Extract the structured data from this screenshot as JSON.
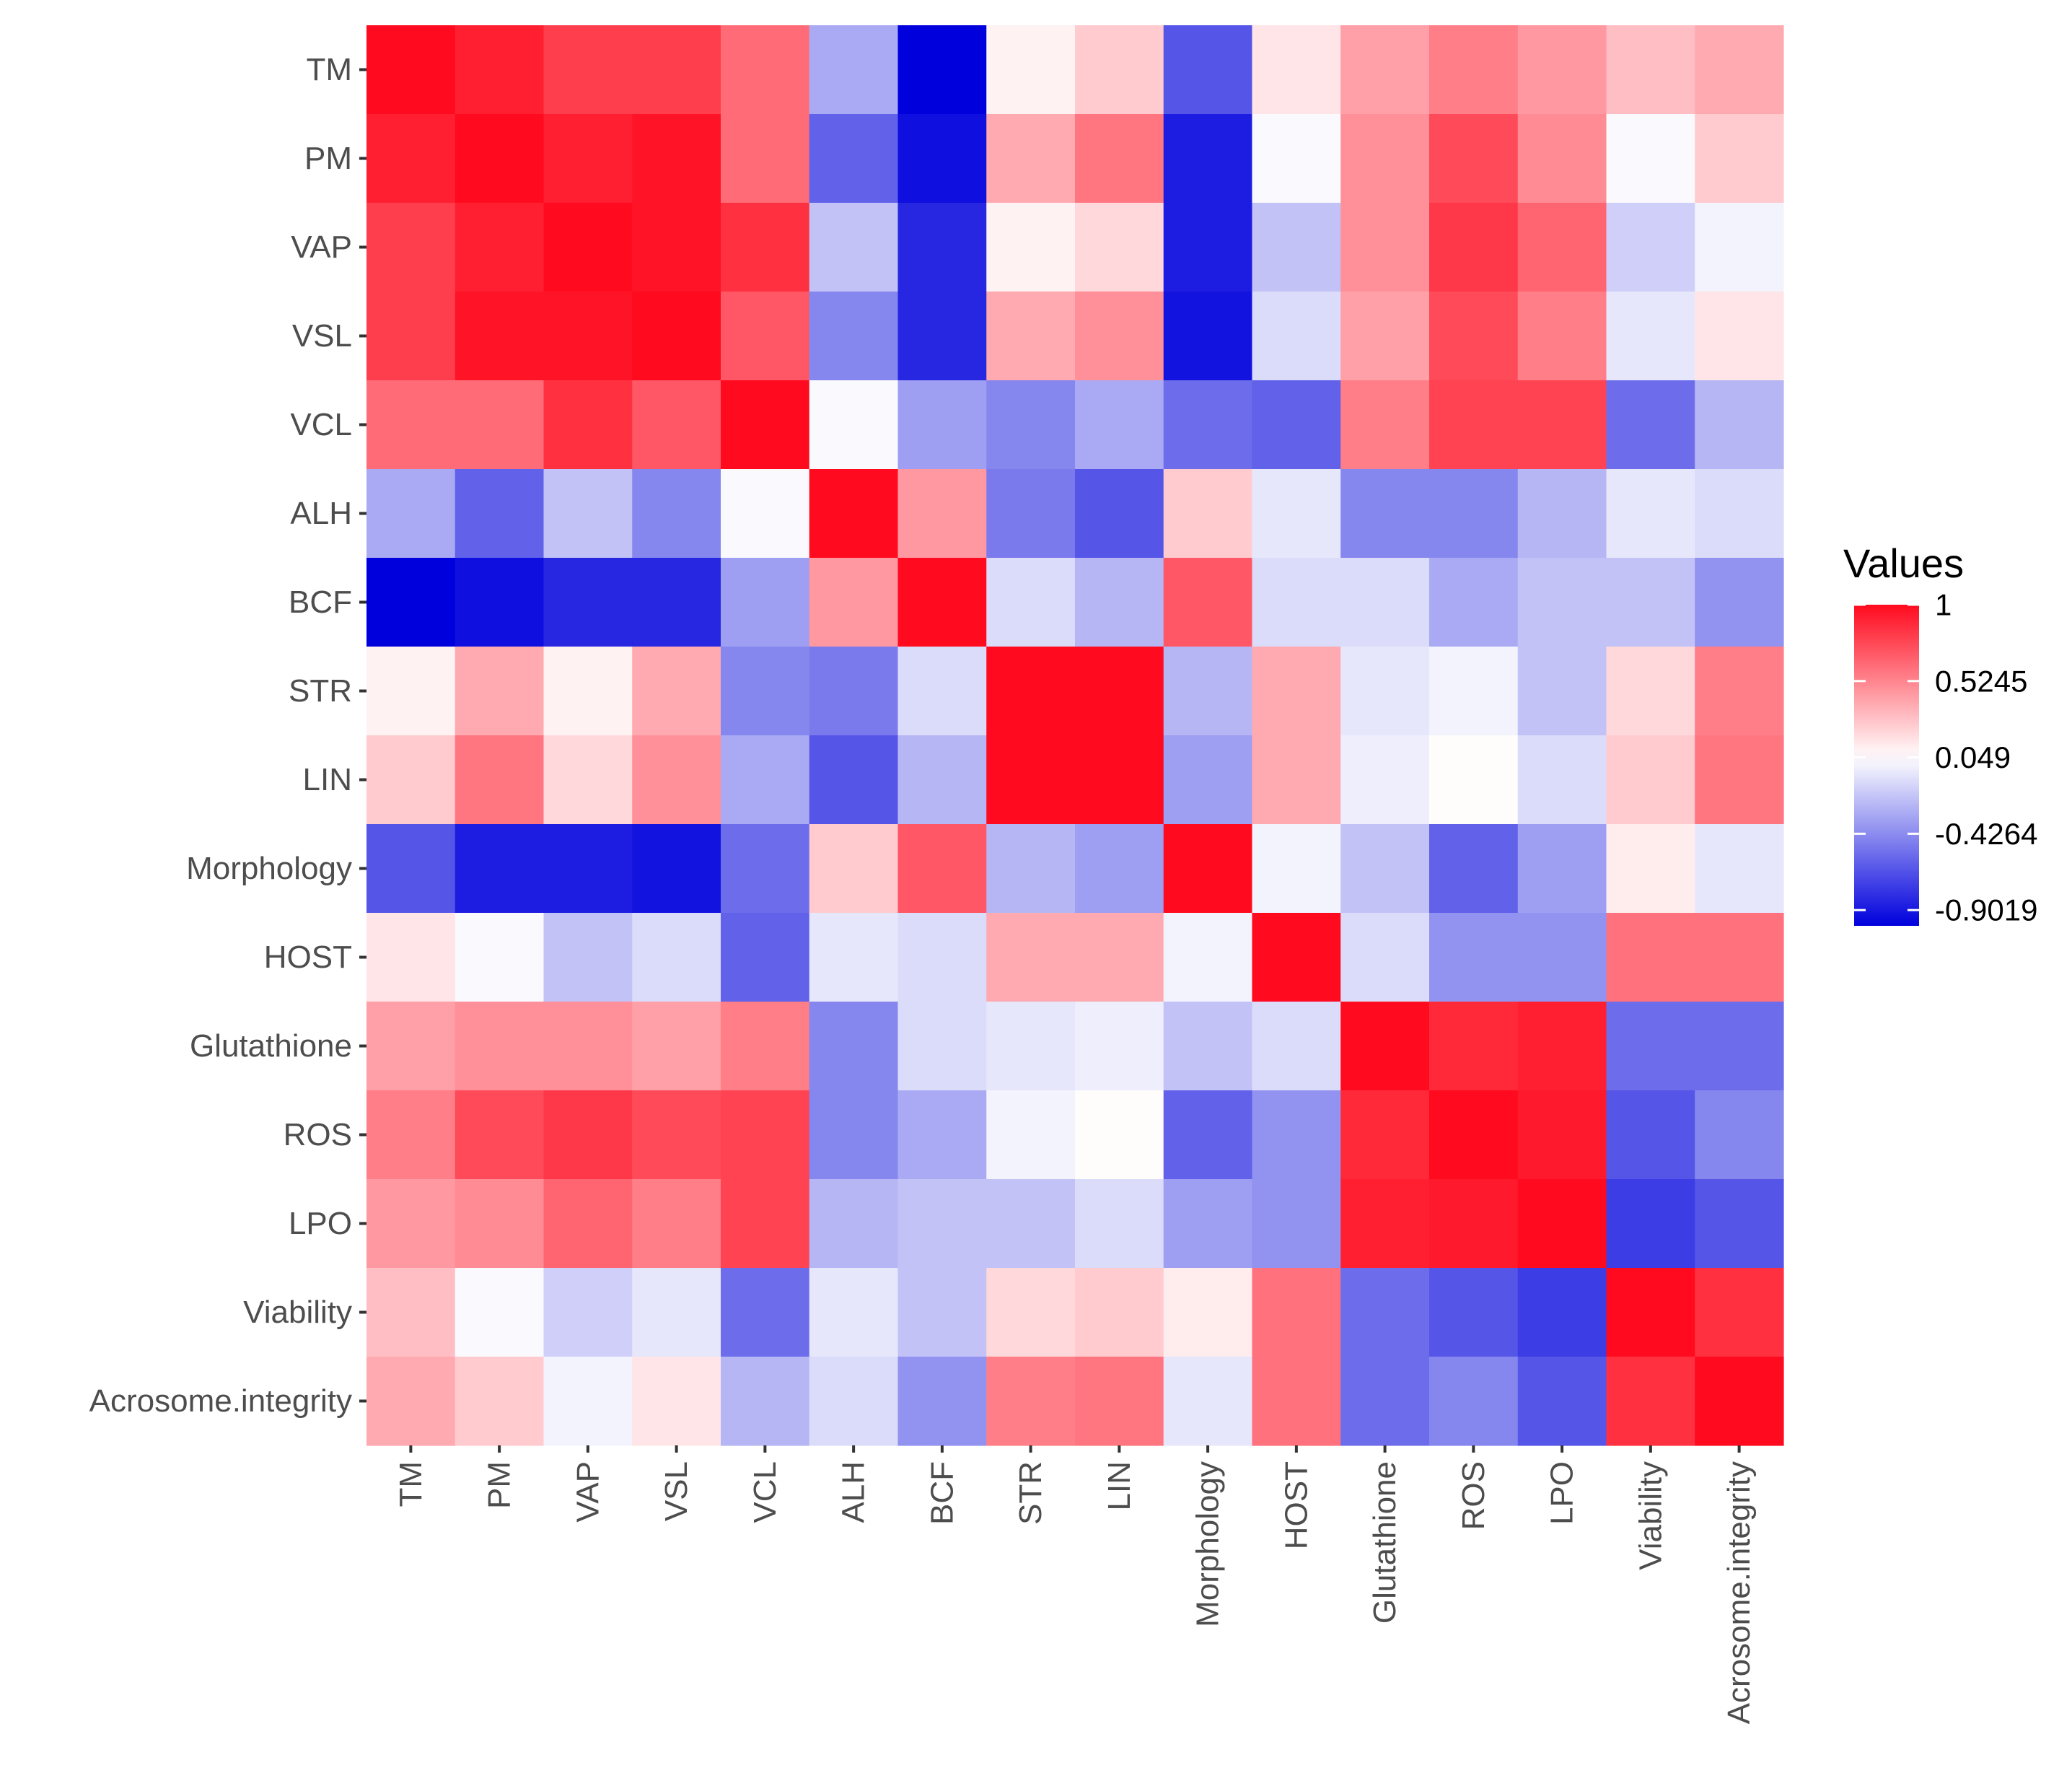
{
  "chart_data": {
    "type": "heatmap",
    "title": "",
    "xlabel": "",
    "ylabel": "",
    "variables": [
      "TM",
      "PM",
      "VAP",
      "VSL",
      "VCL",
      "ALH",
      "BCF",
      "STR",
      "LIN",
      "Morphology",
      "HOST",
      "Glutathione",
      "ROS",
      "LPO",
      "Viability",
      "Acrosome.integrity"
    ],
    "values": [
      [
        1.0,
        0.92,
        0.8,
        0.8,
        0.62,
        -0.3,
        -1.0,
        0.1,
        0.25,
        -0.65,
        0.15,
        0.42,
        0.55,
        0.45,
        0.3,
        0.38
      ],
      [
        0.92,
        1.0,
        0.92,
        0.96,
        0.62,
        -0.6,
        -0.94,
        0.38,
        0.58,
        -0.88,
        0.03,
        0.48,
        0.75,
        0.5,
        0.03,
        0.25
      ],
      [
        0.8,
        0.92,
        1.0,
        0.96,
        0.85,
        -0.2,
        -0.84,
        0.1,
        0.2,
        -0.88,
        -0.2,
        0.48,
        0.82,
        0.65,
        -0.15,
        0.0
      ],
      [
        0.8,
        0.96,
        0.96,
        1.0,
        0.7,
        -0.45,
        -0.84,
        0.38,
        0.48,
        -0.92,
        -0.1,
        0.42,
        0.75,
        0.55,
        -0.05,
        0.15
      ],
      [
        0.62,
        0.62,
        0.85,
        0.7,
        1.0,
        0.03,
        -0.35,
        -0.45,
        -0.3,
        -0.55,
        -0.6,
        0.55,
        0.78,
        0.78,
        -0.55,
        -0.25
      ],
      [
        -0.3,
        -0.6,
        -0.2,
        -0.45,
        0.03,
        1.0,
        0.45,
        -0.5,
        -0.65,
        0.25,
        -0.05,
        -0.45,
        -0.45,
        -0.25,
        -0.05,
        -0.1
      ],
      [
        -1.0,
        -0.94,
        -0.84,
        -0.84,
        -0.35,
        0.45,
        1.0,
        -0.1,
        -0.25,
        0.7,
        -0.1,
        -0.1,
        -0.3,
        -0.2,
        -0.2,
        -0.4
      ],
      [
        0.1,
        0.38,
        0.1,
        0.38,
        -0.45,
        -0.5,
        -0.1,
        1.0,
        1.0,
        -0.25,
        0.38,
        -0.05,
        0.0,
        -0.2,
        0.2,
        0.55
      ],
      [
        0.25,
        0.58,
        0.2,
        0.48,
        -0.3,
        -0.65,
        -0.25,
        1.0,
        1.0,
        -0.35,
        0.38,
        -0.02,
        0.06,
        -0.1,
        0.25,
        0.58
      ],
      [
        -0.65,
        -0.88,
        -0.88,
        -0.92,
        -0.55,
        0.25,
        0.7,
        -0.25,
        -0.35,
        1.0,
        0.0,
        -0.2,
        -0.6,
        -0.35,
        0.12,
        -0.05
      ],
      [
        0.15,
        0.03,
        -0.2,
        -0.1,
        -0.6,
        -0.05,
        -0.1,
        0.38,
        0.38,
        0.0,
        1.0,
        -0.1,
        -0.4,
        -0.4,
        0.6,
        0.6
      ],
      [
        0.42,
        0.48,
        0.48,
        0.42,
        0.55,
        -0.45,
        -0.1,
        -0.05,
        -0.02,
        -0.2,
        -0.1,
        1.0,
        0.88,
        0.92,
        -0.55,
        -0.55
      ],
      [
        0.55,
        0.75,
        0.82,
        0.75,
        0.78,
        -0.45,
        -0.3,
        0.0,
        0.06,
        -0.6,
        -0.4,
        0.88,
        1.0,
        0.94,
        -0.65,
        -0.45
      ],
      [
        0.45,
        0.5,
        0.65,
        0.55,
        0.78,
        -0.25,
        -0.2,
        -0.2,
        -0.1,
        -0.35,
        -0.4,
        0.92,
        0.94,
        1.0,
        -0.75,
        -0.65
      ],
      [
        0.3,
        0.03,
        -0.15,
        -0.05,
        -0.55,
        -0.05,
        -0.2,
        0.2,
        0.25,
        0.12,
        0.6,
        -0.55,
        -0.65,
        -0.75,
        1.0,
        0.85
      ],
      [
        0.38,
        0.25,
        0.0,
        0.15,
        -0.25,
        -0.1,
        -0.4,
        0.55,
        0.58,
        -0.05,
        0.6,
        -0.55,
        -0.45,
        -0.65,
        0.85,
        1.0
      ]
    ],
    "scale": {
      "low": -1.0,
      "mid": 0.049,
      "high": 1.0,
      "low_color": "#0000dd",
      "mid_color": "#ffffff",
      "high_color": "#ff0a1e"
    },
    "legend": {
      "title": "Values",
      "placement": "right",
      "breaks": [
        1,
        0.5245,
        0.049,
        -0.4264,
        -0.9019
      ],
      "labels": [
        "1",
        "0.5245",
        "0.049",
        "-0.4264",
        "-0.9019"
      ]
    },
    "grid": false
  }
}
